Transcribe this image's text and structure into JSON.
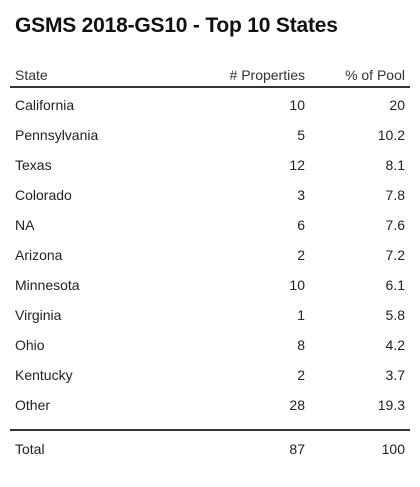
{
  "title": "GSMS 2018-GS10 - Top 10 States",
  "table": {
    "headers": {
      "state": "State",
      "properties": "# Properties",
      "pct": "% of Pool"
    },
    "rows": [
      {
        "state": "California",
        "properties": "10",
        "pct": "20"
      },
      {
        "state": "Pennsylvania",
        "properties": "5",
        "pct": "10.2"
      },
      {
        "state": "Texas",
        "properties": "12",
        "pct": "8.1"
      },
      {
        "state": "Colorado",
        "properties": "3",
        "pct": "7.8"
      },
      {
        "state": "NA",
        "properties": "6",
        "pct": "7.6"
      },
      {
        "state": "Arizona",
        "properties": "2",
        "pct": "7.2"
      },
      {
        "state": "Minnesota",
        "properties": "10",
        "pct": "6.1"
      },
      {
        "state": "Virginia",
        "properties": "1",
        "pct": "5.8"
      },
      {
        "state": "Ohio",
        "properties": "8",
        "pct": "4.2"
      },
      {
        "state": "Kentucky",
        "properties": "2",
        "pct": "3.7"
      },
      {
        "state": "Other",
        "properties": "28",
        "pct": "19.3"
      }
    ],
    "total": {
      "state": "Total",
      "properties": "87",
      "pct": "100"
    }
  },
  "chart_data": {
    "type": "table",
    "title": "GSMS 2018-GS10 - Top 10 States",
    "columns": [
      "State",
      "# Properties",
      "% of Pool"
    ],
    "rows": [
      [
        "California",
        10,
        20
      ],
      [
        "Pennsylvania",
        5,
        10.2
      ],
      [
        "Texas",
        12,
        8.1
      ],
      [
        "Colorado",
        3,
        7.8
      ],
      [
        "NA",
        6,
        7.6
      ],
      [
        "Arizona",
        2,
        7.2
      ],
      [
        "Minnesota",
        10,
        6.1
      ],
      [
        "Virginia",
        1,
        5.8
      ],
      [
        "Ohio",
        8,
        4.2
      ],
      [
        "Kentucky",
        2,
        3.7
      ],
      [
        "Other",
        28,
        19.3
      ]
    ],
    "total": [
      "Total",
      87,
      100
    ]
  }
}
